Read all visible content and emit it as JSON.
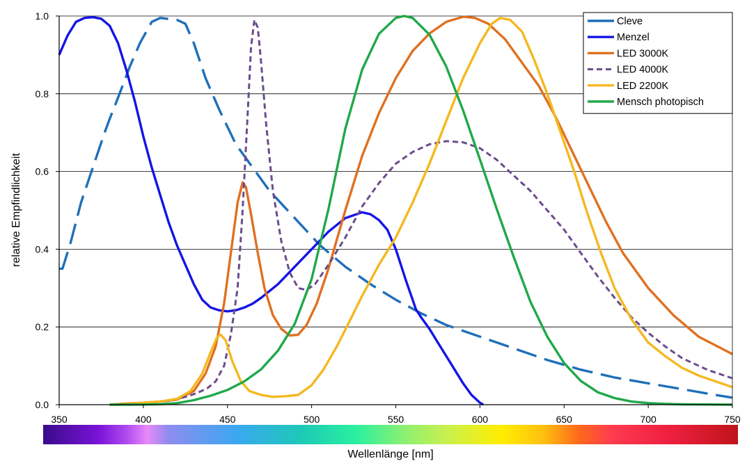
{
  "chart_data": {
    "type": "line",
    "title": "",
    "xlabel": "Wellenlänge [nm]",
    "ylabel": "relative Empfindlichkeit",
    "xlim": [
      350,
      750
    ],
    "ylim": [
      0,
      1
    ],
    "x_ticks": [
      "350",
      "400",
      "450",
      "500",
      "550",
      "600",
      "650",
      "700",
      "750"
    ],
    "y_ticks": [
      "0.0",
      "0.2",
      "0.4",
      "0.6",
      "0.8",
      "1.0"
    ],
    "grid": "horizontal",
    "legend_position": "top-right",
    "spectrum_bar": true,
    "series": [
      {
        "name": "Cleve",
        "color": "#1f6fb8",
        "dash": "long-dash",
        "points": [
          [
            350,
            0.35
          ],
          [
            352,
            0.35
          ],
          [
            357,
            0.42
          ],
          [
            363,
            0.52
          ],
          [
            370,
            0.61
          ],
          [
            377,
            0.7
          ],
          [
            380,
            0.735
          ],
          [
            385,
            0.79
          ],
          [
            392,
            0.87
          ],
          [
            398,
            0.93
          ],
          [
            405,
            0.985
          ],
          [
            410,
            0.995
          ],
          [
            420,
            0.99
          ],
          [
            425,
            0.98
          ],
          [
            430,
            0.93
          ],
          [
            437,
            0.84
          ],
          [
            445,
            0.76
          ],
          [
            455,
            0.67
          ],
          [
            465,
            0.61
          ],
          [
            475,
            0.55
          ],
          [
            490,
            0.48
          ],
          [
            505,
            0.41
          ],
          [
            520,
            0.355
          ],
          [
            535,
            0.31
          ],
          [
            550,
            0.27
          ],
          [
            565,
            0.235
          ],
          [
            580,
            0.205
          ],
          [
            600,
            0.175
          ],
          [
            620,
            0.145
          ],
          [
            640,
            0.115
          ],
          [
            660,
            0.09
          ],
          [
            680,
            0.07
          ],
          [
            700,
            0.055
          ],
          [
            720,
            0.04
          ],
          [
            740,
            0.025
          ],
          [
            750,
            0.018
          ]
        ]
      },
      {
        "name": "Menzel",
        "color": "#1414e6",
        "dash": "solid",
        "points": [
          [
            350,
            0.9
          ],
          [
            355,
            0.95
          ],
          [
            360,
            0.985
          ],
          [
            365,
            0.995
          ],
          [
            370,
            0.997
          ],
          [
            375,
            0.993
          ],
          [
            380,
            0.975
          ],
          [
            385,
            0.93
          ],
          [
            390,
            0.86
          ],
          [
            395,
            0.78
          ],
          [
            400,
            0.69
          ],
          [
            405,
            0.61
          ],
          [
            410,
            0.54
          ],
          [
            415,
            0.47
          ],
          [
            420,
            0.41
          ],
          [
            425,
            0.36
          ],
          [
            430,
            0.31
          ],
          [
            435,
            0.27
          ],
          [
            440,
            0.25
          ],
          [
            445,
            0.243
          ],
          [
            450,
            0.24
          ],
          [
            455,
            0.243
          ],
          [
            460,
            0.25
          ],
          [
            465,
            0.26
          ],
          [
            470,
            0.275
          ],
          [
            480,
            0.31
          ],
          [
            490,
            0.355
          ],
          [
            500,
            0.4
          ],
          [
            510,
            0.445
          ],
          [
            520,
            0.48
          ],
          [
            530,
            0.495
          ],
          [
            535,
            0.49
          ],
          [
            540,
            0.475
          ],
          [
            545,
            0.45
          ],
          [
            550,
            0.4
          ],
          [
            553,
            0.36
          ],
          [
            556,
            0.32
          ],
          [
            560,
            0.27
          ],
          [
            562,
            0.245
          ],
          [
            565,
            0.225
          ],
          [
            570,
            0.195
          ],
          [
            575,
            0.16
          ],
          [
            580,
            0.125
          ],
          [
            585,
            0.09
          ],
          [
            590,
            0.055
          ],
          [
            595,
            0.025
          ],
          [
            600,
            0.005
          ],
          [
            602,
            0.0
          ]
        ]
      },
      {
        "name": "LED 3000K",
        "color": "#e07020",
        "dash": "solid",
        "points": [
          [
            380,
            0.0
          ],
          [
            390,
            0.003
          ],
          [
            400,
            0.005
          ],
          [
            410,
            0.008
          ],
          [
            420,
            0.013
          ],
          [
            430,
            0.035
          ],
          [
            437,
            0.08
          ],
          [
            443,
            0.15
          ],
          [
            448,
            0.26
          ],
          [
            452,
            0.39
          ],
          [
            456,
            0.52
          ],
          [
            459,
            0.572
          ],
          [
            461,
            0.56
          ],
          [
            464,
            0.49
          ],
          [
            468,
            0.39
          ],
          [
            472,
            0.3
          ],
          [
            477,
            0.23
          ],
          [
            482,
            0.195
          ],
          [
            487,
            0.178
          ],
          [
            492,
            0.18
          ],
          [
            497,
            0.205
          ],
          [
            503,
            0.26
          ],
          [
            510,
            0.35
          ],
          [
            520,
            0.5
          ],
          [
            530,
            0.64
          ],
          [
            540,
            0.75
          ],
          [
            550,
            0.84
          ],
          [
            560,
            0.91
          ],
          [
            570,
            0.955
          ],
          [
            580,
            0.985
          ],
          [
            590,
            0.998
          ],
          [
            597,
            0.995
          ],
          [
            605,
            0.98
          ],
          [
            615,
            0.94
          ],
          [
            625,
            0.88
          ],
          [
            635,
            0.82
          ],
          [
            645,
            0.74
          ],
          [
            655,
            0.65
          ],
          [
            665,
            0.56
          ],
          [
            675,
            0.47
          ],
          [
            685,
            0.39
          ],
          [
            700,
            0.3
          ],
          [
            715,
            0.23
          ],
          [
            730,
            0.175
          ],
          [
            750,
            0.13
          ]
        ]
      },
      {
        "name": "LED 4000K",
        "color": "#6b4c8c",
        "dash": "short-dash",
        "points": [
          [
            380,
            0.0
          ],
          [
            400,
            0.003
          ],
          [
            415,
            0.01
          ],
          [
            425,
            0.02
          ],
          [
            432,
            0.03
          ],
          [
            438,
            0.042
          ],
          [
            443,
            0.06
          ],
          [
            448,
            0.1
          ],
          [
            452,
            0.18
          ],
          [
            456,
            0.3
          ],
          [
            459,
            0.5
          ],
          [
            462,
            0.75
          ],
          [
            464,
            0.92
          ],
          [
            466,
            0.99
          ],
          [
            468,
            0.97
          ],
          [
            470,
            0.88
          ],
          [
            473,
            0.72
          ],
          [
            477,
            0.55
          ],
          [
            482,
            0.42
          ],
          [
            487,
            0.34
          ],
          [
            492,
            0.3
          ],
          [
            497,
            0.295
          ],
          [
            502,
            0.31
          ],
          [
            510,
            0.36
          ],
          [
            520,
            0.43
          ],
          [
            530,
            0.51
          ],
          [
            540,
            0.57
          ],
          [
            550,
            0.62
          ],
          [
            560,
            0.65
          ],
          [
            570,
            0.67
          ],
          [
            580,
            0.678
          ],
          [
            590,
            0.675
          ],
          [
            600,
            0.66
          ],
          [
            610,
            0.63
          ],
          [
            620,
            0.59
          ],
          [
            630,
            0.55
          ],
          [
            640,
            0.5
          ],
          [
            650,
            0.45
          ],
          [
            660,
            0.39
          ],
          [
            670,
            0.33
          ],
          [
            680,
            0.275
          ],
          [
            690,
            0.225
          ],
          [
            700,
            0.185
          ],
          [
            710,
            0.15
          ],
          [
            720,
            0.12
          ],
          [
            735,
            0.09
          ],
          [
            750,
            0.068
          ]
        ]
      },
      {
        "name": "LED 2200K",
        "color": "#f5b820",
        "dash": "solid",
        "points": [
          [
            380,
            0.0
          ],
          [
            390,
            0.002
          ],
          [
            400,
            0.005
          ],
          [
            410,
            0.008
          ],
          [
            420,
            0.015
          ],
          [
            428,
            0.035
          ],
          [
            435,
            0.08
          ],
          [
            440,
            0.135
          ],
          [
            444,
            0.175
          ],
          [
            446,
            0.18
          ],
          [
            449,
            0.165
          ],
          [
            453,
            0.11
          ],
          [
            458,
            0.06
          ],
          [
            463,
            0.035
          ],
          [
            470,
            0.025
          ],
          [
            477,
            0.02
          ],
          [
            485,
            0.022
          ],
          [
            492,
            0.025
          ],
          [
            500,
            0.05
          ],
          [
            507,
            0.09
          ],
          [
            515,
            0.15
          ],
          [
            522,
            0.21
          ],
          [
            530,
            0.28
          ],
          [
            540,
            0.36
          ],
          [
            550,
            0.43
          ],
          [
            560,
            0.52
          ],
          [
            570,
            0.62
          ],
          [
            580,
            0.73
          ],
          [
            590,
            0.84
          ],
          [
            600,
            0.93
          ],
          [
            607,
            0.98
          ],
          [
            612,
            0.995
          ],
          [
            618,
            0.99
          ],
          [
            625,
            0.96
          ],
          [
            632,
            0.89
          ],
          [
            640,
            0.8
          ],
          [
            648,
            0.7
          ],
          [
            656,
            0.6
          ],
          [
            664,
            0.49
          ],
          [
            672,
            0.39
          ],
          [
            680,
            0.3
          ],
          [
            690,
            0.22
          ],
          [
            700,
            0.16
          ],
          [
            710,
            0.125
          ],
          [
            720,
            0.095
          ],
          [
            730,
            0.075
          ],
          [
            740,
            0.06
          ],
          [
            750,
            0.045
          ]
        ]
      },
      {
        "name": "Mensch photopisch",
        "color": "#20a84a",
        "dash": "solid",
        "points": [
          [
            380,
            0.0
          ],
          [
            400,
            0.0004
          ],
          [
            410,
            0.0012
          ],
          [
            420,
            0.004
          ],
          [
            430,
            0.0116
          ],
          [
            440,
            0.023
          ],
          [
            450,
            0.038
          ],
          [
            460,
            0.06
          ],
          [
            470,
            0.091
          ],
          [
            480,
            0.139
          ],
          [
            490,
            0.208
          ],
          [
            500,
            0.323
          ],
          [
            510,
            0.503
          ],
          [
            520,
            0.71
          ],
          [
            530,
            0.862
          ],
          [
            540,
            0.954
          ],
          [
            550,
            0.995
          ],
          [
            555,
            1.0
          ],
          [
            560,
            0.995
          ],
          [
            570,
            0.952
          ],
          [
            580,
            0.87
          ],
          [
            590,
            0.757
          ],
          [
            600,
            0.631
          ],
          [
            610,
            0.503
          ],
          [
            620,
            0.381
          ],
          [
            630,
            0.265
          ],
          [
            640,
            0.175
          ],
          [
            650,
            0.107
          ],
          [
            660,
            0.061
          ],
          [
            670,
            0.032
          ],
          [
            680,
            0.017
          ],
          [
            690,
            0.0082
          ],
          [
            700,
            0.0041
          ],
          [
            710,
            0.0021
          ],
          [
            720,
            0.001
          ],
          [
            740,
            0.0003
          ],
          [
            750,
            0.0001
          ]
        ]
      }
    ]
  }
}
